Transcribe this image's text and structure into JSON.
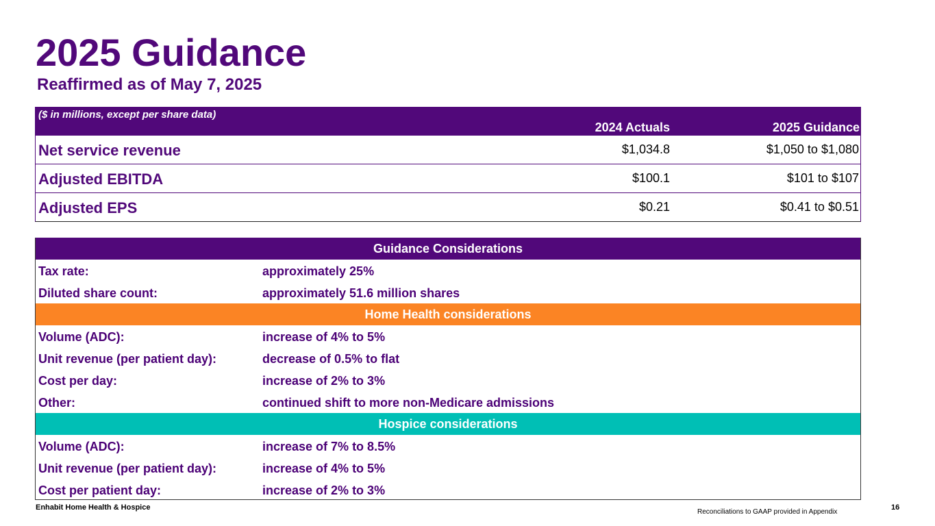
{
  "header": {
    "title": "2025 Guidance",
    "subtitle": "Reaffirmed as of May 7, 2025"
  },
  "financials": {
    "note": "($ in millions, except per share data)",
    "col1": "2024 Actuals",
    "col2": "2025 Guidance",
    "rows": [
      {
        "label": "Net service revenue",
        "actual": "$1,034.8",
        "guidance": "$1,050 to $1,080"
      },
      {
        "label": "Adjusted EBITDA",
        "actual": "$100.1",
        "guidance": "$101 to $107"
      },
      {
        "label": "Adjusted EPS",
        "actual": "$0.21",
        "guidance": "$0.41 to $0.51"
      }
    ]
  },
  "considerations": {
    "general": {
      "title": "Guidance Considerations",
      "rows": [
        {
          "key": "Tax rate:",
          "value": "approximately 25%"
        },
        {
          "key": "Diluted share count:",
          "value": "approximately 51.6 million shares"
        }
      ]
    },
    "home_health": {
      "title": "Home Health considerations",
      "rows": [
        {
          "key": "Volume (ADC):",
          "value": "increase of 4% to 5%"
        },
        {
          "key": "Unit revenue (per patient day):",
          "value": "decrease of 0.5% to flat"
        },
        {
          "key": "Cost per day:",
          "value": "increase of 2% to 3%"
        },
        {
          "key": "Other:",
          "value": "continued shift to more non-Medicare admissions"
        }
      ]
    },
    "hospice": {
      "title": "Hospice considerations",
      "rows": [
        {
          "key": "Volume (ADC):",
          "value": "increase of 7% to 8.5%"
        },
        {
          "key": "Unit revenue (per patient day):",
          "value": "increase of 4% to 5%"
        },
        {
          "key": "Cost per patient day:",
          "value": "increase of 2% to 3%"
        }
      ]
    }
  },
  "footer": {
    "company": "Enhabit Home Health & Hospice",
    "note": "Reconciliations to GAAP provided in Appendix",
    "page": "16"
  },
  "colors": {
    "purple": "#51087a",
    "orange": "#fb8424",
    "teal": "#00bfb5"
  }
}
